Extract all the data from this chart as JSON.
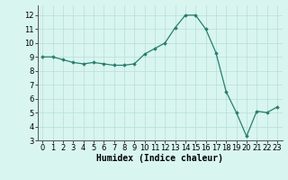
{
  "x": [
    0,
    1,
    2,
    3,
    4,
    5,
    6,
    7,
    8,
    9,
    10,
    11,
    12,
    13,
    14,
    15,
    16,
    17,
    18,
    19,
    20,
    21,
    22,
    23
  ],
  "y": [
    9.0,
    9.0,
    8.8,
    8.6,
    8.5,
    8.6,
    8.5,
    8.4,
    8.4,
    8.5,
    9.2,
    9.6,
    10.0,
    11.1,
    12.0,
    12.0,
    11.0,
    9.3,
    6.5,
    5.0,
    3.3,
    5.1,
    5.0,
    5.4
  ],
  "line_color": "#2a7d6e",
  "marker": "D",
  "marker_size": 1.8,
  "linewidth": 0.9,
  "bg_color": "#d8f5f0",
  "grid_color": "#b8ddd8",
  "xlabel": "Humidex (Indice chaleur)",
  "xlabel_fontsize": 7,
  "tick_fontsize": 6,
  "xlim": [
    -0.5,
    23.5
  ],
  "ylim": [
    3,
    12.7
  ],
  "yticks": [
    3,
    4,
    5,
    6,
    7,
    8,
    9,
    10,
    11,
    12
  ],
  "xticks": [
    0,
    1,
    2,
    3,
    4,
    5,
    6,
    7,
    8,
    9,
    10,
    11,
    12,
    13,
    14,
    15,
    16,
    17,
    18,
    19,
    20,
    21,
    22,
    23
  ]
}
